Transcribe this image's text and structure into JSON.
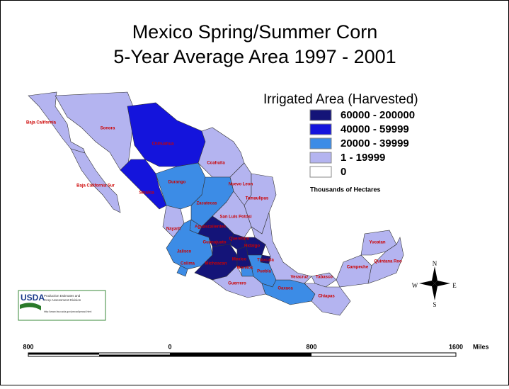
{
  "title": [
    "Mexico Spring/Summer Corn",
    "5-Year Average Area 1997 - 2001"
  ],
  "legend": {
    "title": "Irrigated Area (Harvested)",
    "items": [
      {
        "label": "60000 - 200000",
        "color": "#141478"
      },
      {
        "label": "40000 - 59999",
        "color": "#1414dc"
      },
      {
        "label": "20000 - 39999",
        "color": "#3c8ce6"
      },
      {
        "label": "1 - 19999",
        "color": "#b4b4f0"
      },
      {
        "label": "0",
        "color": "#ffffff"
      }
    ],
    "note": "Thousands of Hectares"
  },
  "states": [
    {
      "name": "Baja California",
      "color": "#b4b4f0"
    },
    {
      "name": "Baja California Sur",
      "color": "#b4b4f0"
    },
    {
      "name": "Sonora",
      "color": "#b4b4f0"
    },
    {
      "name": "Chihuahua",
      "color": "#1414dc"
    },
    {
      "name": "Sinaloa",
      "color": "#1414dc"
    },
    {
      "name": "Durango",
      "color": "#3c8ce6"
    },
    {
      "name": "Coahuila",
      "color": "#b4b4f0"
    },
    {
      "name": "Nuevo Leon",
      "color": "#b4b4f0"
    },
    {
      "name": "Tamaulipas",
      "color": "#b4b4f0"
    },
    {
      "name": "Zacatecas",
      "color": "#3c8ce6"
    },
    {
      "name": "San Luis Potosi",
      "color": "#b4b4f0"
    },
    {
      "name": "Nayarit",
      "color": "#b4b4f0"
    },
    {
      "name": "Aguascalientes",
      "color": "#3c8ce6"
    },
    {
      "name": "Jalisco",
      "color": "#3c8ce6"
    },
    {
      "name": "Colima",
      "color": "#3c8ce6"
    },
    {
      "name": "Guanajuato",
      "color": "#141478"
    },
    {
      "name": "Queretaro",
      "color": "#141478"
    },
    {
      "name": "Michoacan",
      "color": "#141478"
    },
    {
      "name": "Hidalgo",
      "color": "#141478"
    },
    {
      "name": "Mexico",
      "color": "#141478"
    },
    {
      "name": "Tlaxcala",
      "color": "#141478"
    },
    {
      "name": "Morelos",
      "color": "#3c8ce6"
    },
    {
      "name": "Puebla",
      "color": "#3c8ce6"
    },
    {
      "name": "Guerrero",
      "color": "#b4b4f0"
    },
    {
      "name": "Oaxaca",
      "color": "#3c8ce6"
    },
    {
      "name": "Veracruz",
      "color": "#b4b4f0"
    },
    {
      "name": "Tabasco",
      "color": "#b4b4f0"
    },
    {
      "name": "Chiapas",
      "color": "#b4b4f0"
    },
    {
      "name": "Campeche",
      "color": "#b4b4f0"
    },
    {
      "name": "Yucatan",
      "color": "#b4b4f0"
    },
    {
      "name": "Quintana Roo",
      "color": "#b4b4f0"
    }
  ],
  "logo": {
    "name": "USDA",
    "lines": [
      "Production Estimates and",
      "Crop Assessment Division"
    ],
    "url": "http://www.fas.usda.gov/pecad/pecad.html"
  },
  "compass": {
    "n": "N",
    "s": "S",
    "e": "E",
    "w": "W"
  },
  "scale": {
    "labels": [
      "800",
      "0",
      "800",
      "1600"
    ],
    "unit": "Miles"
  }
}
